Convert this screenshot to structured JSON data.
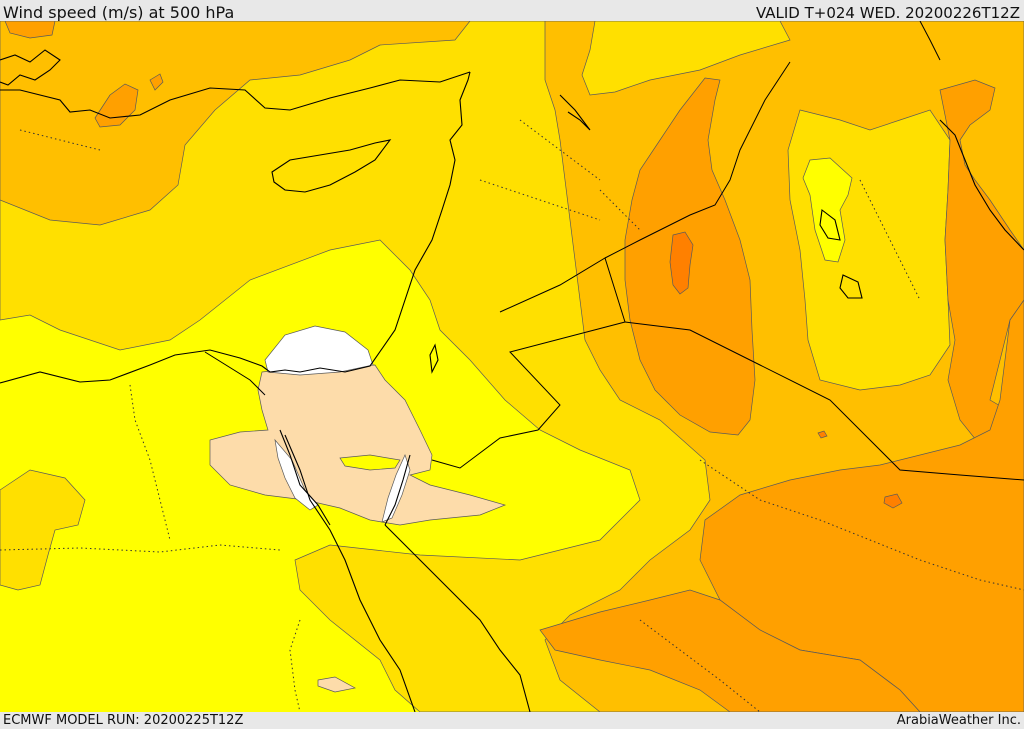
{
  "header": {
    "title": "Wind speed (m/s) at 500 hPa",
    "valid": "VALID T+024 WED. 20200226T12Z"
  },
  "footer": {
    "model_run": "ECMWF MODEL RUN: 20200225T12Z",
    "credit": "ArabiaWeather Inc."
  },
  "colors": {
    "bg_light_yellow": "#ffff00",
    "yellow": "#ffe000",
    "amber": "#ffbf00",
    "orange": "#ffa000",
    "dark_orange": "#ff8000",
    "peach": "#fddcaa",
    "white": "#ffffff"
  }
}
